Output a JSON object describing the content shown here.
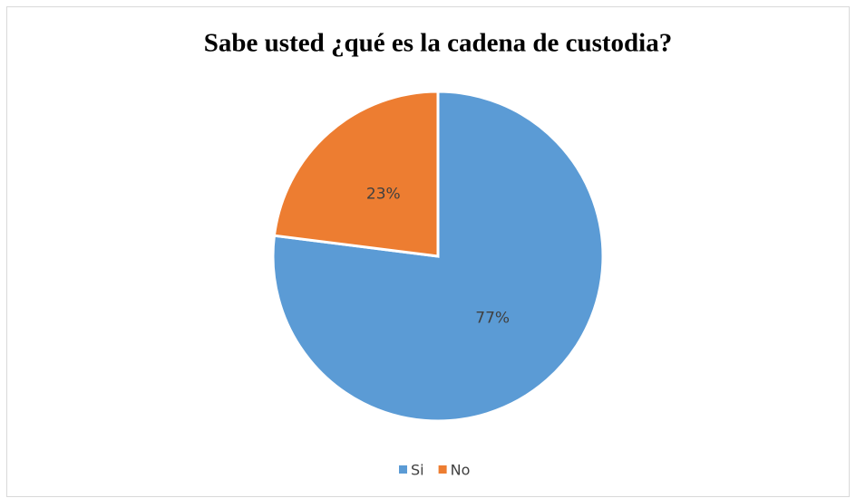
{
  "chart_data": {
    "type": "pie",
    "title": "Sabe usted ¿qué es la cadena de custodia?",
    "categories": [
      "Si",
      "No"
    ],
    "values": [
      77,
      23
    ],
    "value_labels": [
      "77%",
      "23%"
    ],
    "colors": [
      "#5b9bd5",
      "#ed7d31"
    ],
    "legend": "bottom"
  }
}
